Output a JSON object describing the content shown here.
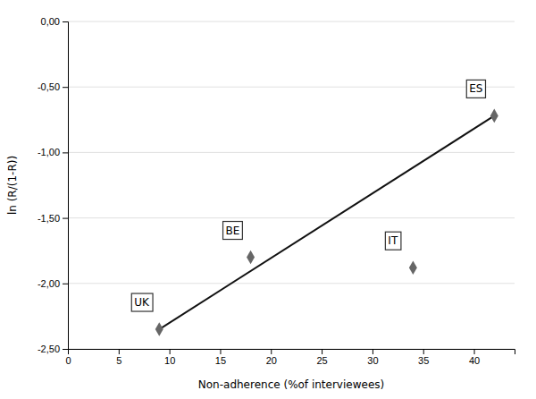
{
  "chart_data": {
    "type": "scatter",
    "xlabel": "Non-adherence (%of interviewees)",
    "ylabel": "ln (R/(1-R))",
    "series": [
      {
        "type": "scatter",
        "marker": "diamond",
        "color": "#666666",
        "x": [
          9,
          18,
          34,
          42
        ],
        "values": [
          -2.35,
          -1.8,
          -1.88,
          -0.72
        ]
      },
      {
        "type": "line",
        "color": "#111111",
        "x": [
          9,
          42
        ],
        "values": [
          -2.35,
          -0.72
        ]
      }
    ],
    "annotations": [
      {
        "text": "UK",
        "x": 9,
        "y": -2.35
      },
      {
        "text": "BE",
        "x": 18,
        "y": -1.8
      },
      {
        "text": "IT",
        "x": 34,
        "y": -1.88
      },
      {
        "text": "ES",
        "x": 42,
        "y": -0.72
      }
    ],
    "xlim": [
      0,
      44
    ],
    "ylim": [
      -2.5,
      0.0
    ],
    "xticks": [
      0,
      5,
      10,
      15,
      20,
      25,
      30,
      35,
      40
    ],
    "yticks": [
      {
        "value": 0.0,
        "label": "0,00"
      },
      {
        "value": -0.5,
        "label": "-0,50"
      },
      {
        "value": -1.0,
        "label": "-1,00"
      },
      {
        "value": -1.5,
        "label": "-1,50"
      },
      {
        "value": -2.0,
        "label": "-2,00"
      },
      {
        "value": -2.5,
        "label": "-2,50"
      }
    ],
    "grid": "y"
  }
}
